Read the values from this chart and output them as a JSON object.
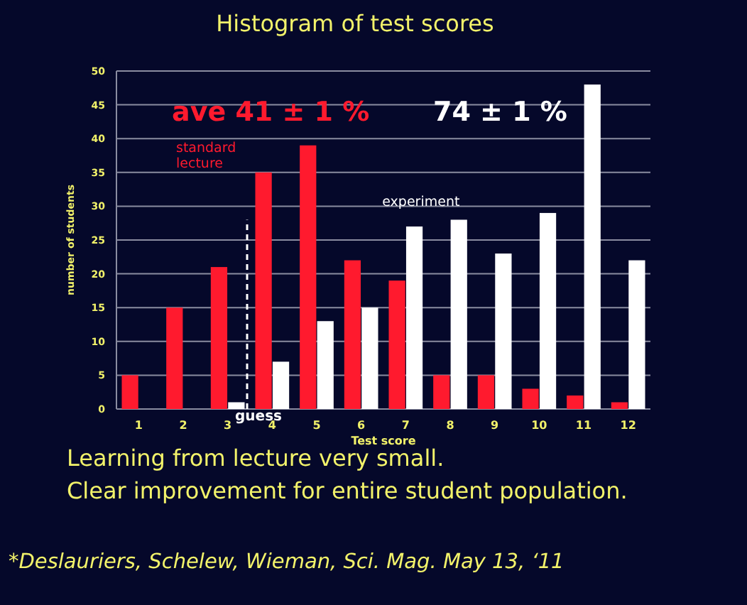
{
  "chart_data": {
    "type": "bar",
    "title": "Histogram of test scores",
    "xlabel": "Test score",
    "ylabel": "number of students",
    "categories": [
      "1",
      "2",
      "3",
      "4",
      "5",
      "6",
      "7",
      "8",
      "9",
      "10",
      "11",
      "12"
    ],
    "series": [
      {
        "name": "standard lecture",
        "color": "#ff1a2e",
        "values": [
          5,
          15,
          21,
          35,
          39,
          22,
          19,
          5,
          5,
          3,
          2,
          1
        ]
      },
      {
        "name": "experiment",
        "color": "#ffffff",
        "values": [
          0,
          0,
          1,
          7,
          13,
          15,
          27,
          28,
          23,
          29,
          48,
          22
        ]
      }
    ],
    "ylim": [
      0,
      50
    ],
    "yticks": [
      0,
      5,
      10,
      15,
      20,
      25,
      30,
      35,
      40,
      45,
      50
    ],
    "grid": "y",
    "ref_lines": [
      {
        "axis": "x",
        "value": "3",
        "label": "guess",
        "color": "#ffffff",
        "line_style": "dashed"
      }
    ],
    "annotations": [
      "ave 41 ± 1 %",
      "74 ± 1 %",
      "Learning from lecture very small.",
      "Clear improvement for entire student population.",
      "*Deslauriers, Schelew, Wieman, Sci. Mag.  May 13, ‘11"
    ]
  }
}
